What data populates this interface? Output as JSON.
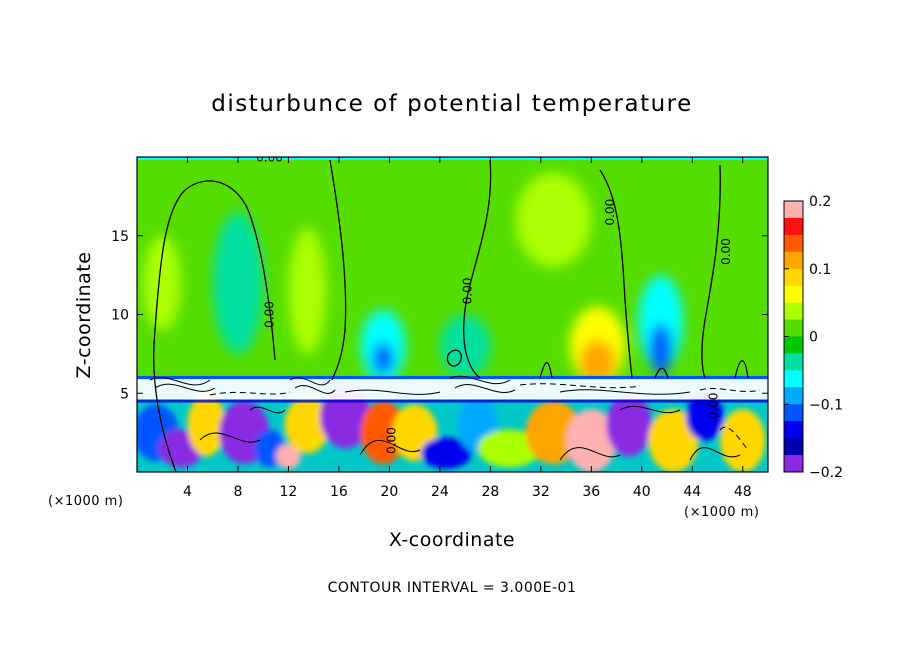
{
  "chart_data": {
    "type": "heatmap",
    "title": "disturbunce of potential temperature",
    "xlabel": "X-coordinate",
    "ylabel": "Z-coordinate",
    "x_unit": "(×1000 m)",
    "y_unit": "(×1000 m)",
    "x_range": [
      0,
      50
    ],
    "y_range": [
      0,
      20
    ],
    "x_ticks": [
      4,
      8,
      12,
      16,
      20,
      24,
      28,
      32,
      36,
      40,
      44,
      48
    ],
    "y_ticks": [
      5,
      10,
      15
    ],
    "colorbar": {
      "range": [
        -0.2,
        0.2
      ],
      "tick_values": [
        0.2,
        0.1,
        0,
        -0.1,
        -0.2
      ],
      "tick_labels": [
        "0.2",
        "0.1",
        "0",
        "−0.1",
        "−0.2"
      ],
      "colors": [
        "#ffb0b0",
        "#ff1010",
        "#ff5a00",
        "#ffa500",
        "#ffd700",
        "#ffff00",
        "#aaff00",
        "#55dd00",
        "#00c800",
        "#00e0a0",
        "#00ffff",
        "#00aaff",
        "#0055ff",
        "#0000ee",
        "#0000b0",
        "#8a2be2"
      ]
    },
    "contour_interval": "CONTOUR INTERVAL = 3.000E-01",
    "contour_labels": [
      {
        "text": "0.00",
        "x": 10.5,
        "y": 19.7,
        "rotate": 0
      },
      {
        "text": "0.00",
        "x": 10.8,
        "y": 10.0,
        "rotate": -90
      },
      {
        "text": "0.00",
        "x": 26.5,
        "y": 11.5,
        "rotate": -90
      },
      {
        "text": "0.00",
        "x": 37.8,
        "y": 16.5,
        "rotate": -90
      },
      {
        "text": "0.00",
        "x": 47.0,
        "y": 14.0,
        "rotate": -90
      },
      {
        "text": "0.00",
        "x": 20.5,
        "y": 2.0,
        "rotate": -90
      },
      {
        "text": "0.00",
        "x": 46.0,
        "y": 4.2,
        "rotate": -90
      }
    ],
    "field_blobs": [
      {
        "x": 8,
        "y": 12,
        "rx": 2.0,
        "ry": 4.5,
        "value": -0.03
      },
      {
        "x": 13.5,
        "y": 11.5,
        "rx": 1.5,
        "ry": 4.0,
        "value": 0.04
      },
      {
        "x": 19.5,
        "y": 8,
        "rx": 1.8,
        "ry": 2.3,
        "value": -0.05
      },
      {
        "x": 19.5,
        "y": 7.2,
        "rx": 0.8,
        "ry": 1.0,
        "value": -0.1
      },
      {
        "x": 26,
        "y": 8,
        "rx": 2.0,
        "ry": 2.0,
        "value": -0.04
      },
      {
        "x": 36.5,
        "y": 8.0,
        "rx": 2.2,
        "ry": 2.5,
        "value": 0.06
      },
      {
        "x": 36.5,
        "y": 7.0,
        "rx": 1.4,
        "ry": 1.4,
        "value": 0.12
      },
      {
        "x": 41.5,
        "y": 9.5,
        "rx": 1.8,
        "ry": 3.0,
        "value": -0.06
      },
      {
        "x": 41.5,
        "y": 7.8,
        "rx": 0.9,
        "ry": 1.6,
        "value": -0.12
      },
      {
        "x": 33,
        "y": 16,
        "rx": 3.0,
        "ry": 3.0,
        "value": 0.03
      },
      {
        "x": 2,
        "y": 12,
        "rx": 1.5,
        "ry": 3.0,
        "value": 0.03
      }
    ],
    "lower_blobs": [
      {
        "x": 1.5,
        "y": 2.5,
        "rx": 1.8,
        "ry": 1.8,
        "value": -0.1
      },
      {
        "x": 3.5,
        "y": 1.5,
        "rx": 1.8,
        "ry": 1.2,
        "value": -0.2
      },
      {
        "x": 5.5,
        "y": 3.0,
        "rx": 1.5,
        "ry": 2.0,
        "value": 0.1
      },
      {
        "x": 8.5,
        "y": 2.5,
        "rx": 2.0,
        "ry": 2.0,
        "value": -0.2
      },
      {
        "x": 10.5,
        "y": 1.5,
        "rx": 1.2,
        "ry": 1.2,
        "value": -0.1
      },
      {
        "x": 12,
        "y": 1.0,
        "rx": 1.0,
        "ry": 0.8,
        "value": 0.2
      },
      {
        "x": 13.5,
        "y": 3.0,
        "rx": 1.8,
        "ry": 1.8,
        "value": 0.1
      },
      {
        "x": 16.5,
        "y": 3.5,
        "rx": 2.0,
        "ry": 2.0,
        "value": -0.2
      },
      {
        "x": 19.5,
        "y": 2.5,
        "rx": 1.8,
        "ry": 2.0,
        "value": 0.15
      },
      {
        "x": 22,
        "y": 2.5,
        "rx": 1.8,
        "ry": 1.8,
        "value": 0.08
      },
      {
        "x": 24.5,
        "y": 1.2,
        "rx": 2.0,
        "ry": 1.0,
        "value": -0.15
      },
      {
        "x": 27,
        "y": 3.0,
        "rx": 1.6,
        "ry": 1.8,
        "value": -0.08
      },
      {
        "x": 29.5,
        "y": 1.5,
        "rx": 2.5,
        "ry": 1.2,
        "value": 0.05
      },
      {
        "x": 33.0,
        "y": 2.5,
        "rx": 2.2,
        "ry": 2.0,
        "value": 0.12
      },
      {
        "x": 36.0,
        "y": 2.0,
        "rx": 2.0,
        "ry": 2.0,
        "value": 0.2
      },
      {
        "x": 39.0,
        "y": 3.0,
        "rx": 1.8,
        "ry": 2.0,
        "value": -0.2
      },
      {
        "x": 42.5,
        "y": 2.0,
        "rx": 2.0,
        "ry": 2.0,
        "value": 0.1
      },
      {
        "x": 45.0,
        "y": 3.5,
        "rx": 1.5,
        "ry": 1.5,
        "value": -0.15
      },
      {
        "x": 48.0,
        "y": 2.0,
        "rx": 1.8,
        "ry": 2.0,
        "value": 0.08
      }
    ]
  }
}
